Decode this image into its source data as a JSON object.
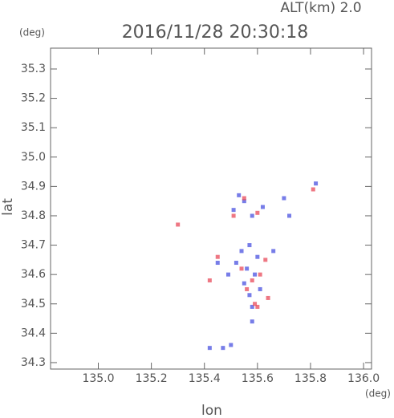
{
  "chart_data": {
    "type": "scatter",
    "annotation": "ALT(km) 2.0",
    "title": "2016/11/28 20:30:18",
    "y_unit": "(deg)",
    "x_unit": "(deg)",
    "x_label": "lon",
    "y_label": "lat",
    "xlim": [
      134.82,
      136.03
    ],
    "ylim": [
      34.278,
      35.371
    ],
    "xticks": [
      {
        "value": 135,
        "label": "135.0"
      },
      135.2,
      135.4,
      135.6,
      135.8,
      {
        "value": 136,
        "label": "136.0"
      }
    ],
    "yticks": [
      34.3,
      34.4,
      34.5,
      34.6,
      34.7,
      34.8,
      34.9,
      {
        "value": 35,
        "label": "35.0"
      },
      35.1,
      35.2,
      35.3
    ],
    "series": [
      {
        "color": "#4a52e0",
        "x": [
          135.53,
          135.55,
          135.51,
          135.58,
          135.62,
          135.57,
          135.54,
          135.6,
          135.52,
          135.56,
          135.59,
          135.55,
          135.57,
          135.58,
          135.45,
          135.49,
          135.61,
          135.66,
          135.72,
          135.82,
          135.7,
          135.42,
          135.47,
          135.58,
          135.5
        ],
        "values": [
          34.87,
          34.85,
          34.82,
          34.8,
          34.83,
          34.7,
          34.68,
          34.66,
          34.64,
          34.62,
          34.6,
          34.57,
          34.53,
          34.49,
          34.64,
          34.6,
          34.55,
          34.68,
          34.8,
          34.91,
          34.86,
          34.35,
          34.35,
          34.44,
          34.36
        ]
      },
      {
        "color": "#e84a5a",
        "x": [
          135.3,
          135.81,
          135.55,
          135.51,
          135.6,
          135.63,
          135.54,
          135.58,
          135.61,
          135.56,
          135.45,
          135.42,
          135.64,
          135.6,
          135.59
        ],
        "values": [
          34.77,
          34.89,
          34.86,
          34.8,
          34.81,
          34.65,
          34.62,
          34.58,
          34.6,
          34.55,
          34.66,
          34.58,
          34.52,
          34.49,
          34.5
        ]
      }
    ]
  }
}
